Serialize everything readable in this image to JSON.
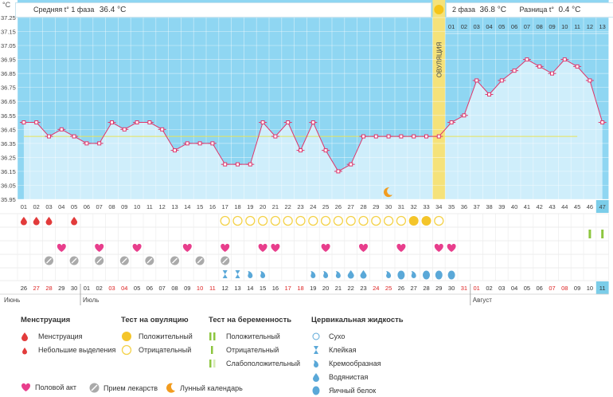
{
  "header": {
    "unit": "°C",
    "phase1_label": "Средняя t° 1 фаза",
    "phase1_value": "36.4 °C",
    "phase2_label": "2 фаза",
    "phase2_value": "36.8 °C",
    "diff_label": "Разница t°",
    "diff_value": "0.4 °C"
  },
  "ovulation_label": "ОВУЛЯЦИЯ",
  "colors": {
    "sky": "#8fd6f2",
    "fill": "#cfeefb",
    "line": "#e0356a",
    "ovulation": "#f5e27a",
    "sun": "#f5c518",
    "today": "#7bcde9",
    "heart": "#e83e8c",
    "drop": "#e23b3b",
    "pill": "#aaaaaa",
    "fluid": "#5aa8d8",
    "positive": "#f4c52a",
    "negative": "#f4d24a",
    "preg": "#8dc63f"
  },
  "chart_data": {
    "type": "line",
    "ylim": [
      35.95,
      37.25
    ],
    "yticks": [
      "37.25",
      "37.15",
      "37.05",
      "36.95",
      "36.85",
      "36.75",
      "36.65",
      "36.55",
      "36.45",
      "36.35",
      "36.25",
      "36.15",
      "36.05",
      "35.95"
    ],
    "cycle_days": [
      "01",
      "02",
      "03",
      "04",
      "05",
      "06",
      "07",
      "08",
      "09",
      "10",
      "11",
      "12",
      "13",
      "14",
      "15",
      "16",
      "17",
      "18",
      "19",
      "20",
      "21",
      "22",
      "23",
      "24",
      "25",
      "26",
      "27",
      "28",
      "29",
      "30",
      "31",
      "32",
      "33",
      "34",
      "35",
      "36",
      "37",
      "38",
      "39",
      "40",
      "41",
      "42",
      "43",
      "44",
      "45",
      "46",
      "47"
    ],
    "temps": [
      36.5,
      36.5,
      36.4,
      36.45,
      36.4,
      36.35,
      36.35,
      36.5,
      36.45,
      36.5,
      36.5,
      36.45,
      36.3,
      36.35,
      36.35,
      36.35,
      36.2,
      36.2,
      36.2,
      36.5,
      36.4,
      36.5,
      36.3,
      36.5,
      36.3,
      36.15,
      36.2,
      36.4,
      36.4,
      36.4,
      36.4,
      36.4,
      36.4,
      36.4,
      36.5,
      36.55,
      36.8,
      36.7,
      36.8,
      36.87,
      36.95,
      36.9,
      36.85,
      36.95,
      36.9,
      36.8,
      36.5
    ],
    "coverline": 36.4,
    "phase2_dates": [
      "01",
      "02",
      "03",
      "04",
      "05",
      "06",
      "07",
      "08",
      "09",
      "10",
      "11",
      "12",
      "13"
    ],
    "ovulation_day": 34,
    "today_day": 47,
    "moon_day": 30,
    "menstruation_days": [
      1,
      2,
      3,
      5
    ],
    "ovulation_test_negative": [
      17,
      18,
      19,
      20,
      21,
      22,
      23,
      24,
      25,
      26,
      27,
      28,
      29,
      30,
      31,
      34
    ],
    "ovulation_test_positive": [
      32,
      33
    ],
    "pregnancy_test_positive": [
      46,
      47
    ],
    "intercourse_days": [
      4,
      7,
      10,
      14,
      17,
      20,
      21,
      25,
      28,
      31,
      34,
      35
    ],
    "medication_days": [
      3,
      5,
      7,
      9,
      11,
      13,
      15,
      17
    ],
    "fluid_sticky_days": [
      17,
      18
    ],
    "fluid_creamy_days": [
      19,
      20,
      24,
      25,
      26,
      30,
      32
    ],
    "fluid_watery_days": [
      27,
      28
    ],
    "fluid_eggwhite_days": [
      31,
      33,
      34,
      35
    ],
    "calendar_dates": [
      "26",
      "27",
      "28",
      "29",
      "30",
      "01",
      "02",
      "03",
      "04",
      "05",
      "06",
      "07",
      "08",
      "09",
      "10",
      "11",
      "12",
      "13",
      "14",
      "15",
      "16",
      "17",
      "18",
      "19",
      "20",
      "21",
      "22",
      "23",
      "24",
      "25",
      "26",
      "27",
      "28",
      "29",
      "30",
      "31",
      "01",
      "02",
      "03",
      "04",
      "05",
      "06",
      "07",
      "08",
      "09",
      "10",
      "11"
    ],
    "weekend_days": [
      2,
      3,
      8,
      9,
      15,
      16,
      22,
      23,
      29,
      30,
      36,
      37,
      43,
      44
    ],
    "months": [
      {
        "label": "Июнь",
        "start_day": 1
      },
      {
        "label": "Июль",
        "start_day": 6
      },
      {
        "label": "Август",
        "start_day": 37
      }
    ]
  },
  "legend": {
    "menstruation": {
      "title": "Менструация",
      "items": [
        "Менструация",
        "Небольшие выделения"
      ]
    },
    "ovulation_test": {
      "title": "Тест на овуляцию",
      "items": [
        "Положительный",
        "Отрицательный"
      ]
    },
    "pregnancy_test": {
      "title": "Тест на беременность",
      "items": [
        "Положительный",
        "Отрицательный",
        "Слабоположительный"
      ]
    },
    "cervical": {
      "title": "Цервикальная жидкость",
      "items": [
        "Сухо",
        "Клейкая",
        "Кремообразная",
        "Водянистая",
        "Яичный белок"
      ]
    },
    "bottom": {
      "intercourse": "Половой акт",
      "medication": "Прием лекарств",
      "moon": "Лунный календарь"
    }
  }
}
